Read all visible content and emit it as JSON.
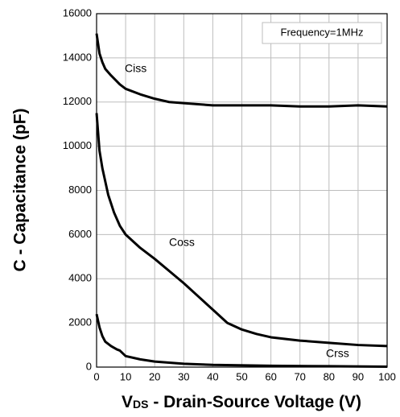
{
  "chart_data": {
    "type": "line",
    "ylabel": "C - Capacitance (pF)",
    "xlabel": [
      "V",
      "DS",
      " - Drain-Source Voltage (V)"
    ],
    "annotation": "Frequency=1MHz",
    "xlim": [
      0,
      100
    ],
    "ylim": [
      0,
      16000
    ],
    "xticks": [
      0,
      10,
      20,
      30,
      40,
      50,
      60,
      70,
      80,
      90,
      100
    ],
    "yticks": [
      0,
      2000,
      4000,
      6000,
      8000,
      10000,
      12000,
      14000,
      16000
    ],
    "grid": true,
    "series": [
      {
        "name": "Ciss",
        "color": "#000000",
        "x": [
          0,
          1,
          2,
          3,
          5,
          8,
          10,
          15,
          20,
          25,
          30,
          40,
          50,
          60,
          70,
          80,
          90,
          100
        ],
        "values": [
          15100,
          14200,
          13800,
          13500,
          13200,
          12800,
          12600,
          12350,
          12150,
          12000,
          11950,
          11850,
          11850,
          11850,
          11800,
          11800,
          11850,
          11800
        ]
      },
      {
        "name": "Coss",
        "color": "#000000",
        "x": [
          0,
          1,
          2,
          4,
          6,
          8,
          10,
          15,
          20,
          25,
          30,
          35,
          40,
          45,
          50,
          55,
          60,
          70,
          80,
          90,
          100
        ],
        "values": [
          11500,
          9800,
          9000,
          7800,
          7000,
          6400,
          6000,
          5400,
          4900,
          4350,
          3800,
          3200,
          2600,
          2000,
          1700,
          1500,
          1350,
          1200,
          1100,
          1000,
          950
        ]
      },
      {
        "name": "Crss",
        "color": "#000000",
        "x": [
          0,
          1,
          2,
          3,
          5,
          7,
          8,
          10,
          15,
          20,
          30,
          40,
          60,
          80,
          100
        ],
        "values": [
          2400,
          1800,
          1400,
          1150,
          950,
          800,
          750,
          500,
          350,
          250,
          150,
          100,
          60,
          40,
          20
        ]
      }
    ]
  }
}
